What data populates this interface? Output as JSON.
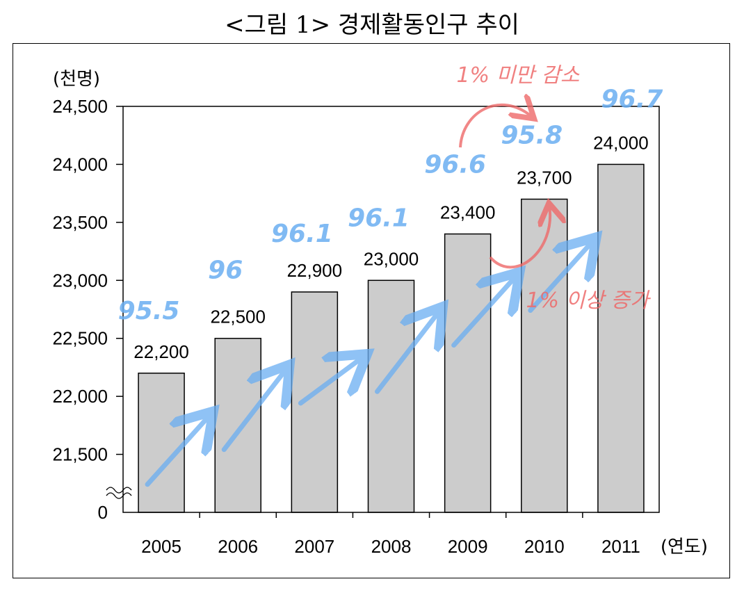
{
  "title": "<그림 1> 경제활동인구 추이",
  "chart_data": {
    "type": "bar",
    "ylabel": "(천명)",
    "xlabel": "(연도)",
    "categories": [
      "2005",
      "2006",
      "2007",
      "2008",
      "2009",
      "2010",
      "2011"
    ],
    "values": [
      22200,
      22500,
      22900,
      23000,
      23400,
      23700,
      24000
    ],
    "data_labels": [
      "22,200",
      "22,500",
      "22,900",
      "23,000",
      "23,400",
      "23,700",
      "24,000"
    ],
    "ylim": [
      21000,
      24500
    ],
    "yticks": [
      21500,
      22000,
      22500,
      23000,
      23500,
      24000,
      24500
    ],
    "ytick_labels": [
      "21,500",
      "22,000",
      "22,500",
      "23,000",
      "23,500",
      "24,000",
      "24,500"
    ],
    "y_origin_label": "0",
    "axis_break": true,
    "grid": false,
    "bar_color": "#cccccc",
    "annotations": {
      "handwritten_values": [
        "95.5",
        "96",
        "96.1",
        "96.1",
        "96.6",
        "95.8",
        "96.7"
      ],
      "handwritten_color": "#6aaef2",
      "note_decrease": "1% 미만 감소",
      "note_increase": "1% 이상 증가",
      "note_color": "#ee6a6a"
    }
  }
}
